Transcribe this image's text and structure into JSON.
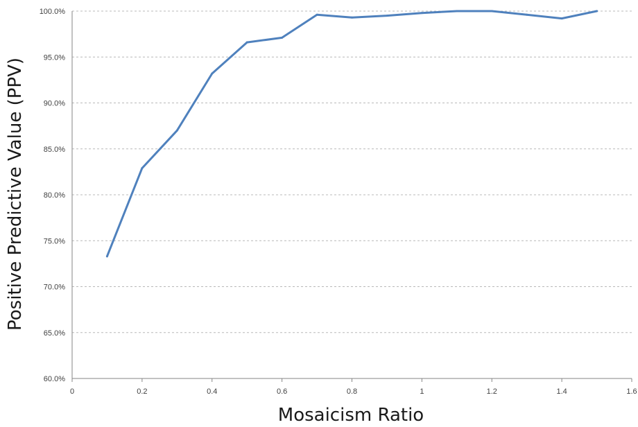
{
  "chart_data": {
    "type": "line",
    "title": "",
    "xlabel": "Mosaicism Ratio",
    "ylabel": "Positive Predictive Value (PPV)",
    "xlim": [
      0,
      1.6
    ],
    "ylim": [
      60,
      100
    ],
    "x_ticks": [
      {
        "value": 0,
        "label": "0"
      },
      {
        "value": 0.2,
        "label": "0.2"
      },
      {
        "value": 0.4,
        "label": "0.4"
      },
      {
        "value": 0.6,
        "label": "0.6"
      },
      {
        "value": 0.8,
        "label": "0.8"
      },
      {
        "value": 1.0,
        "label": "1"
      },
      {
        "value": 1.2,
        "label": "1.2"
      },
      {
        "value": 1.4,
        "label": "1.4"
      },
      {
        "value": 1.6,
        "label": "1.6"
      }
    ],
    "y_ticks": [
      {
        "value": 60,
        "label": "60.0%"
      },
      {
        "value": 65,
        "label": "65.0%"
      },
      {
        "value": 70,
        "label": "70.0%"
      },
      {
        "value": 75,
        "label": "75.0%"
      },
      {
        "value": 80,
        "label": "80.0%"
      },
      {
        "value": 85,
        "label": "85.0%"
      },
      {
        "value": 90,
        "label": "90.0%"
      },
      {
        "value": 95,
        "label": "95.0%"
      },
      {
        "value": 100,
        "label": "100.0%"
      }
    ],
    "grid": true,
    "legend": "none",
    "series": [
      {
        "color": "#4f81bd",
        "x": [
          0.1,
          0.2,
          0.3,
          0.4,
          0.5,
          0.6,
          0.7,
          0.8,
          0.9,
          1.0,
          1.1,
          1.2,
          1.3,
          1.4,
          1.5
        ],
        "y": [
          73.3,
          82.9,
          87.0,
          93.2,
          96.6,
          97.1,
          99.6,
          99.3,
          99.5,
          99.8,
          100.0,
          100.0,
          99.6,
          99.2,
          100.0
        ]
      }
    ]
  }
}
